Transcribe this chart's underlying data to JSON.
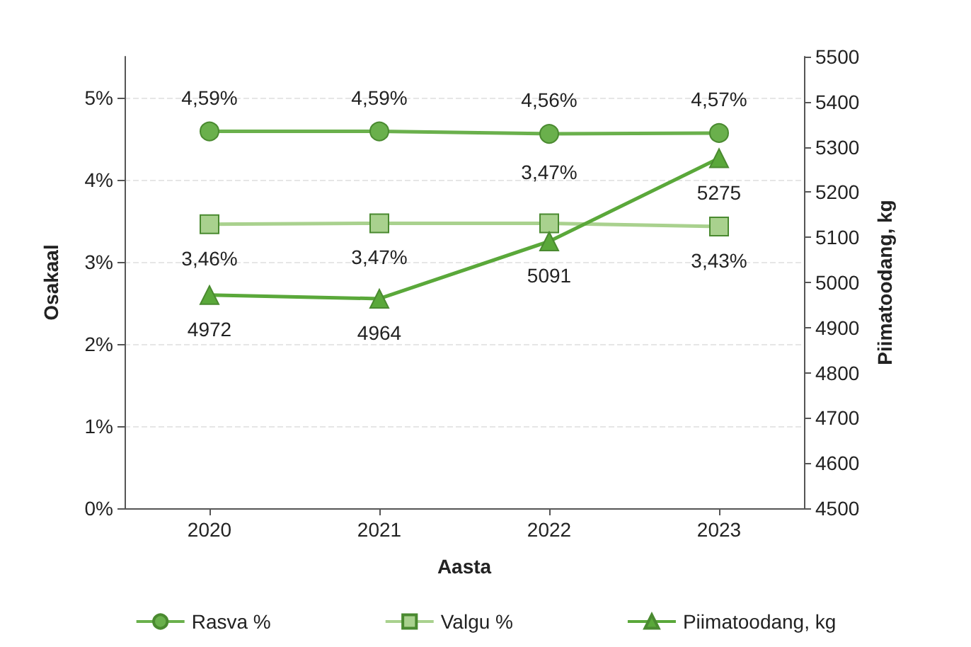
{
  "chart_data": {
    "type": "line",
    "xlabel": "Aasta",
    "ylabel": "Osakaal",
    "y2label": "Piimatoodang, kg",
    "categories": [
      "2020",
      "2021",
      "2022",
      "2023"
    ],
    "series": [
      {
        "name": "Rasva %",
        "color": "#6ab04c",
        "marker": "circle",
        "values": [
          4.59,
          4.59,
          4.56,
          4.57
        ],
        "value_labels": [
          "4,59%",
          "4,59%",
          "4,56%",
          "4,57%"
        ]
      },
      {
        "name": "Valgu %",
        "color": "#a9d18e",
        "marker": "square",
        "values": [
          3.46,
          3.47,
          3.47,
          3.43
        ],
        "value_labels": [
          "3,46%",
          "3,47%",
          "3,47%",
          "3,43%"
        ]
      },
      {
        "name": "Piimatoodang, kg",
        "color": "#5aa83a",
        "marker": "triangle",
        "axis": "y2",
        "values": [
          4972,
          4964,
          5091,
          5275
        ],
        "value_labels": [
          "4972",
          "4964",
          "5091",
          "5275"
        ]
      }
    ],
    "ylim": [
      0,
      5.5
    ],
    "yticks": [
      {
        "value": 0,
        "label": "0%"
      },
      {
        "value": 1,
        "label": "1%"
      },
      {
        "value": 2,
        "label": "2%"
      },
      {
        "value": 3,
        "label": "3%"
      },
      {
        "value": 4,
        "label": "4%"
      },
      {
        "value": 5,
        "label": "5%"
      }
    ],
    "y2lim": [
      4500,
      5500
    ],
    "y2ticks": [
      4500,
      4600,
      4700,
      4800,
      4900,
      5000,
      5100,
      5200,
      5300,
      5400,
      5500
    ],
    "grid": "y",
    "legend": "bottom"
  }
}
